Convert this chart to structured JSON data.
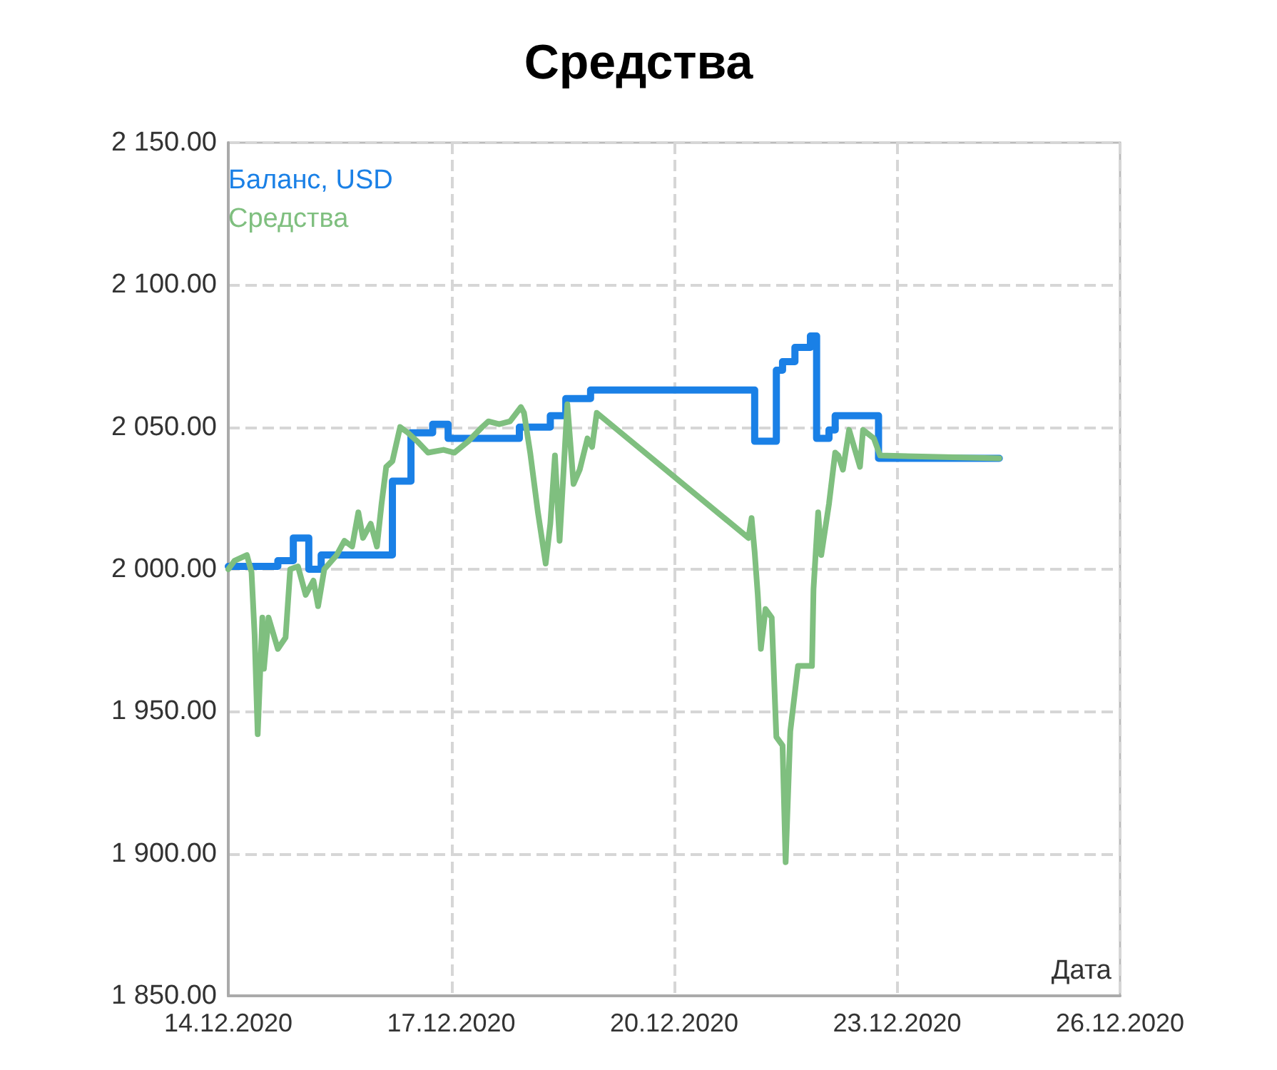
{
  "chart_data": {
    "type": "line",
    "title": "Средства",
    "xlabel": "Дата",
    "xlim": [
      "2020-12-14",
      "2020-12-26"
    ],
    "xticks": [
      {
        "value": "2020-12-14",
        "label": "14.12.2020"
      },
      {
        "value": "2020-12-17",
        "label": "17.12.2020"
      },
      {
        "value": "2020-12-20",
        "label": "20.12.2020"
      },
      {
        "value": "2020-12-23",
        "label": "23.12.2020"
      },
      {
        "value": "2020-12-26",
        "label": "26.12.2020"
      }
    ],
    "ylim": [
      1850,
      2150
    ],
    "yticks": [
      {
        "value": 1850,
        "label": "1 850.00"
      },
      {
        "value": 1900,
        "label": "1 900.00"
      },
      {
        "value": 1950,
        "label": "1 950.00"
      },
      {
        "value": 2000,
        "label": "2 000.00"
      },
      {
        "value": 2050,
        "label": "2 050.00"
      },
      {
        "value": 2100,
        "label": "2 100.00"
      },
      {
        "value": 2150,
        "label": "2 150.00"
      }
    ],
    "grid": true,
    "legend": "top left",
    "series": [
      {
        "name": "Баланс, USD",
        "type": "step",
        "color": "#1a80e6",
        "x": [
          "2020-12-14T00:00",
          "2020-12-14T16:00",
          "2020-12-14T21:00",
          "2020-12-15T02:00",
          "2020-12-15T06:00",
          "2020-12-16T05:00",
          "2020-12-16T11:00",
          "2020-12-16T18:00",
          "2020-12-16T23:00",
          "2020-12-17T22:00",
          "2020-12-18T08:00",
          "2020-12-18T13:00",
          "2020-12-18T21:00",
          "2020-12-21T02:00",
          "2020-12-21T09:00",
          "2020-12-21T11:00",
          "2020-12-21T15:00",
          "2020-12-21T20:00",
          "2020-12-21T22:00",
          "2020-12-22T02:00",
          "2020-12-22T04:00",
          "2020-12-22T18:00",
          "2020-12-24T09:00"
        ],
        "values": [
          2001,
          2003,
          2011,
          2000,
          2005,
          2031,
          2048,
          2051,
          2046,
          2050,
          2054,
          2060,
          2063,
          2045,
          2070,
          2073,
          2078,
          2082,
          2046,
          2049,
          2054,
          2039,
          2039
        ]
      },
      {
        "name": "Средства",
        "type": "line",
        "color": "#7fbf7f",
        "x": [
          "2020-12-14T00:00",
          "2020-12-14T02:00",
          "2020-12-14T06:00",
          "2020-12-14T07:30",
          "2020-12-14T08:30",
          "2020-12-14T09:30",
          "2020-12-14T11:00",
          "2020-12-14T11:30",
          "2020-12-14T13:00",
          "2020-12-14T16:00",
          "2020-12-14T18:30",
          "2020-12-14T20:00",
          "2020-12-14T22:30",
          "2020-12-15T01:00",
          "2020-12-15T03:30",
          "2020-12-15T05:00",
          "2020-12-15T07:00",
          "2020-12-15T11:00",
          "2020-12-15T13:30",
          "2020-12-15T16:00",
          "2020-12-15T18:00",
          "2020-12-15T19:30",
          "2020-12-15T22:00",
          "2020-12-16T00:00",
          "2020-12-16T01:30",
          "2020-12-16T03:00",
          "2020-12-16T05:00",
          "2020-12-16T07:30",
          "2020-12-16T10:00",
          "2020-12-16T13:00",
          "2020-12-16T16:30",
          "2020-12-16T21:30",
          "2020-12-17T01:00",
          "2020-12-17T05:30",
          "2020-12-17T10:00",
          "2020-12-17T12:00",
          "2020-12-17T15:30",
          "2020-12-17T19:00",
          "2020-12-17T22:30",
          "2020-12-17T23:30",
          "2020-12-18T01:30",
          "2020-12-18T04:00",
          "2020-12-18T06:30",
          "2020-12-18T08:00",
          "2020-12-18T09:30",
          "2020-12-18T11:00",
          "2020-12-18T13:30",
          "2020-12-18T15:30",
          "2020-12-18T17:30",
          "2020-12-18T20:00",
          "2020-12-18T21:30",
          "2020-12-18T23:00",
          "2020-12-21T00:00",
          "2020-12-21T01:00",
          "2020-12-21T02:00",
          "2020-12-21T03:00",
          "2020-12-21T04:00",
          "2020-12-21T05:30",
          "2020-12-21T07:30",
          "2020-12-21T09:00",
          "2020-12-21T11:00",
          "2020-12-21T12:00",
          "2020-12-21T13:30",
          "2020-12-21T16:00",
          "2020-12-21T20:30",
          "2020-12-21T21:00",
          "2020-12-21T22:30",
          "2020-12-21T23:30",
          "2020-12-22T02:00",
          "2020-12-22T04:00",
          "2020-12-22T05:00",
          "2020-12-22T06:30",
          "2020-12-22T08:30",
          "2020-12-22T12:00",
          "2020-12-22T13:00",
          "2020-12-22T16:30",
          "2020-12-22T18:30",
          "2020-12-24T09:00"
        ],
        "values": [
          2000,
          2003,
          2005,
          1999,
          1977,
          1942,
          1983,
          1965,
          1983,
          1972,
          1976,
          2000,
          2001,
          1991,
          1996,
          1987,
          2000,
          2005,
          2010,
          2008,
          2020,
          2011,
          2016,
          2008,
          2023,
          2036,
          2038,
          2050,
          2048,
          2045,
          2041,
          2042,
          2041,
          2045,
          2050,
          2052,
          2051,
          2052,
          2057,
          2055,
          2041,
          2020,
          2002,
          2016,
          2040,
          2010,
          2058,
          2030,
          2035,
          2046,
          2043,
          2055,
          2011,
          2018,
          2006,
          1991,
          1972,
          1986,
          1983,
          1941,
          1938,
          1897,
          1943,
          1966,
          1966,
          1993,
          2020,
          2005,
          2023,
          2041,
          2040,
          2035,
          2049,
          2036,
          2049,
          2046,
          2040,
          2039
        ]
      }
    ]
  }
}
